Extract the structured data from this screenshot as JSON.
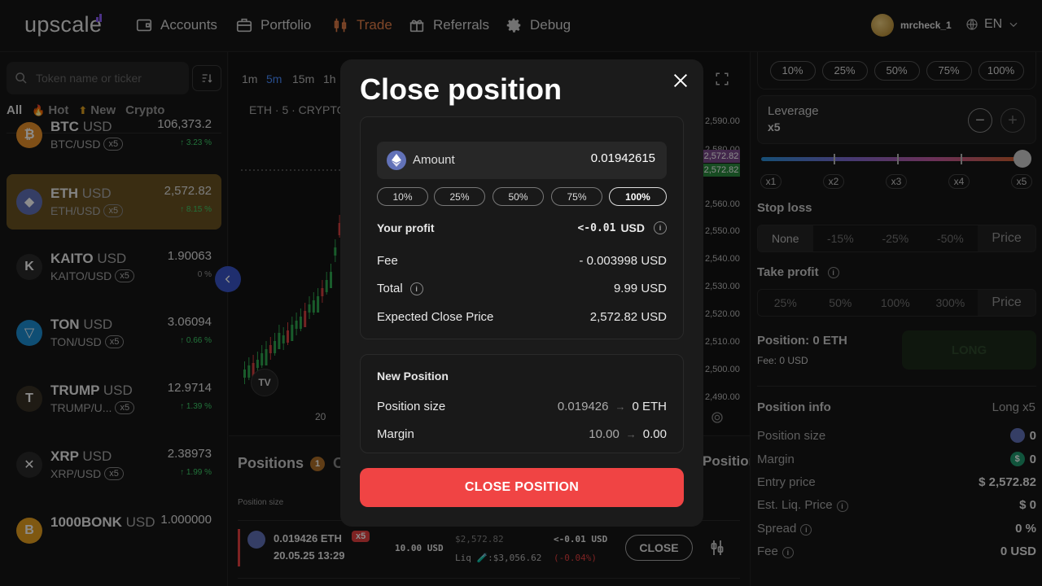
{
  "header": {
    "logo": "upscale",
    "nav": [
      {
        "label": "Accounts",
        "icon": "wallet-icon"
      },
      {
        "label": "Portfolio",
        "icon": "briefcase-icon"
      },
      {
        "label": "Trade",
        "icon": "candles-icon",
        "active": true
      },
      {
        "label": "Referrals",
        "icon": "gift-icon"
      },
      {
        "label": "Debug",
        "icon": "gear-icon"
      }
    ],
    "username": "mrcheck_1",
    "language": "EN"
  },
  "sidebar": {
    "search_placeholder": "Token name or ticker",
    "filters": [
      "All",
      "Hot",
      "New",
      "Crypto"
    ],
    "tokens": [
      {
        "symbol": "BTC",
        "quote": "USD",
        "pair": "BTC/USD",
        "leverage": "x5",
        "price": "106,373.2",
        "change": "↑ 3.23 %",
        "color": "#e8912a",
        "glyph": "₿"
      },
      {
        "symbol": "ETH",
        "quote": "USD",
        "pair": "ETH/USD",
        "leverage": "x5",
        "price": "2,572.82",
        "change": "↑ 8.15 %",
        "color": "#6272b8",
        "glyph": "◆"
      },
      {
        "symbol": "KAITO",
        "quote": "USD",
        "pair": "KAITO/USD",
        "leverage": "x5",
        "price": "1.90063",
        "change": "0 %",
        "color": "#2a2a2a",
        "glyph": "K"
      },
      {
        "symbol": "TON",
        "quote": "USD",
        "pair": "TON/USD",
        "leverage": "x5",
        "price": "3.06094",
        "change": "↑ 0.66 %",
        "color": "#1d8fd4",
        "glyph": "▽"
      },
      {
        "symbol": "TRUMP",
        "quote": "USD",
        "pair": "TRUMP/U...",
        "leverage": "x5",
        "price": "12.9714",
        "change": "↑ 1.39 %",
        "color": "#3a3226",
        "glyph": "T"
      },
      {
        "symbol": "XRP",
        "quote": "USD",
        "pair": "XRP/USD",
        "leverage": "x5",
        "price": "2.38973",
        "change": "↑ 1.99 %",
        "color": "#2a2a2a",
        "glyph": "✕"
      },
      {
        "symbol": "1000BONK",
        "quote": "USD",
        "pair": "",
        "leverage": "",
        "price": "1.000000",
        "change": "",
        "color": "#e8a020",
        "glyph": "B"
      }
    ]
  },
  "chart": {
    "timeframes": [
      "1m",
      "5m",
      "15m",
      "1h"
    ],
    "active_timeframe": "5m",
    "title": "ETH · 5 · CRYPTO",
    "y_labels": [
      "2,590.00",
      "2,580.00",
      "2,560.00",
      "2,550.00",
      "2,540.00",
      "2,530.00",
      "2,520.00",
      "2,510.00",
      "2,500.00",
      "2,490.00"
    ],
    "price_tag_1": "2,572.82",
    "price_tag_2": "2,572.82",
    "x_label": "20",
    "tv_logo": "TV"
  },
  "positions": {
    "title": "Positions",
    "count": "1",
    "tab2": "O",
    "tab3": "Positions",
    "column_header": "Position size",
    "row": {
      "amount": "0.019426 ETH",
      "leverage": "x5",
      "date": "20.05.25 13:29",
      "margin": "10.00 USD",
      "entry": "$2,572.82",
      "liq": "Liq 🧪:$3,056.62",
      "pl": "<-0.01 USD",
      "pl_pct": "(-0.04%)",
      "close_label": "CLOSE"
    }
  },
  "right_panel": {
    "percents": [
      "10%",
      "25%",
      "50%",
      "75%",
      "100%"
    ],
    "leverage_label": "Leverage",
    "leverage_value": "x5",
    "leverage_marks": [
      "x1",
      "x2",
      "x3",
      "x4",
      "x5"
    ],
    "leverage_fraction": 1.0,
    "stop_loss_label": "Stop loss",
    "stop_loss_options": [
      "None",
      "-15%",
      "-25%",
      "-50%",
      "Price"
    ],
    "take_profit_label": "Take profit",
    "take_profit_options": [
      "25%",
      "50%",
      "100%",
      "300%",
      "Price"
    ],
    "position_label": "Position: 0 ETH",
    "fee_label": "Fee: 0 USD",
    "long_label": "LONG",
    "info_title": "Position info",
    "info_type": "Long x5",
    "info_rows": [
      {
        "label": "Position size",
        "value": "0"
      },
      {
        "label": "Margin",
        "value": "0"
      },
      {
        "label": "Entry price",
        "value": "$ 2,572.82"
      },
      {
        "label": "Est. Liq. Price",
        "value": "$ 0"
      },
      {
        "label": "Spread",
        "value": "0 %"
      },
      {
        "label": "Fee",
        "value": "0 USD"
      }
    ]
  },
  "modal": {
    "title": "Close position",
    "amount_label": "Amount",
    "amount_value": "0.01942615",
    "percents": [
      "10%",
      "25%",
      "50%",
      "75%",
      "100%"
    ],
    "selected_percent": "100%",
    "profit_label": "Your profit",
    "profit_value": "<-0.01",
    "profit_unit": "USD",
    "fee_label": "Fee",
    "fee_value": "- 0.003998 USD",
    "total_label": "Total",
    "total_value": "9.99 USD",
    "close_price_label": "Expected Close Price",
    "close_price_value": "2,572.82 USD",
    "new_position_title": "New Position",
    "size_label": "Position size",
    "size_old": "0.019426",
    "size_new": "0 ETH",
    "margin_label": "Margin",
    "margin_old": "10.00",
    "margin_new": "0.00",
    "button_label": "CLOSE POSITION"
  }
}
